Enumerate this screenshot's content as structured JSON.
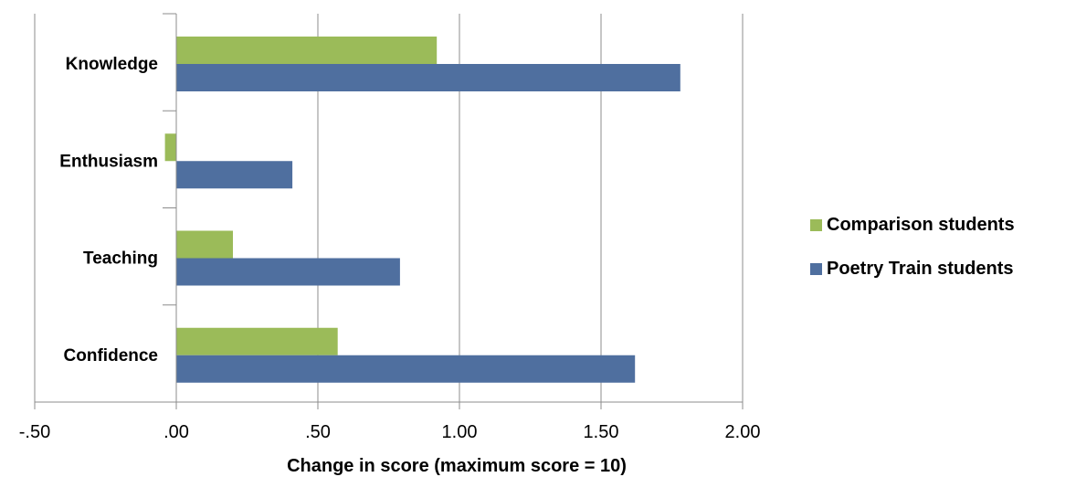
{
  "chart_data": {
    "type": "bar",
    "orientation": "horizontal",
    "categories": [
      "Knowledge",
      "Enthusiasm",
      "Teaching",
      "Confidence"
    ],
    "series": [
      {
        "name": "Comparison students",
        "color": "#9bbb59",
        "values": [
          0.92,
          -0.04,
          0.2,
          0.57
        ]
      },
      {
        "name": "Poetry Train students",
        "color": "#4f6f9f",
        "values": [
          1.78,
          0.41,
          0.79,
          1.62
        ]
      }
    ],
    "xlim": [
      -0.5,
      2.0
    ],
    "xticks": [
      -0.5,
      0,
      0.5,
      1.0,
      1.5,
      2.0
    ],
    "xtick_labels": [
      "-.50",
      ".00",
      ".50",
      "1.00",
      "1.50",
      "2.00"
    ],
    "xlabel": "Change in score (maximum  score = 10)",
    "ylabel": "",
    "title": "",
    "grid": "vertical",
    "legend_position": "right"
  }
}
